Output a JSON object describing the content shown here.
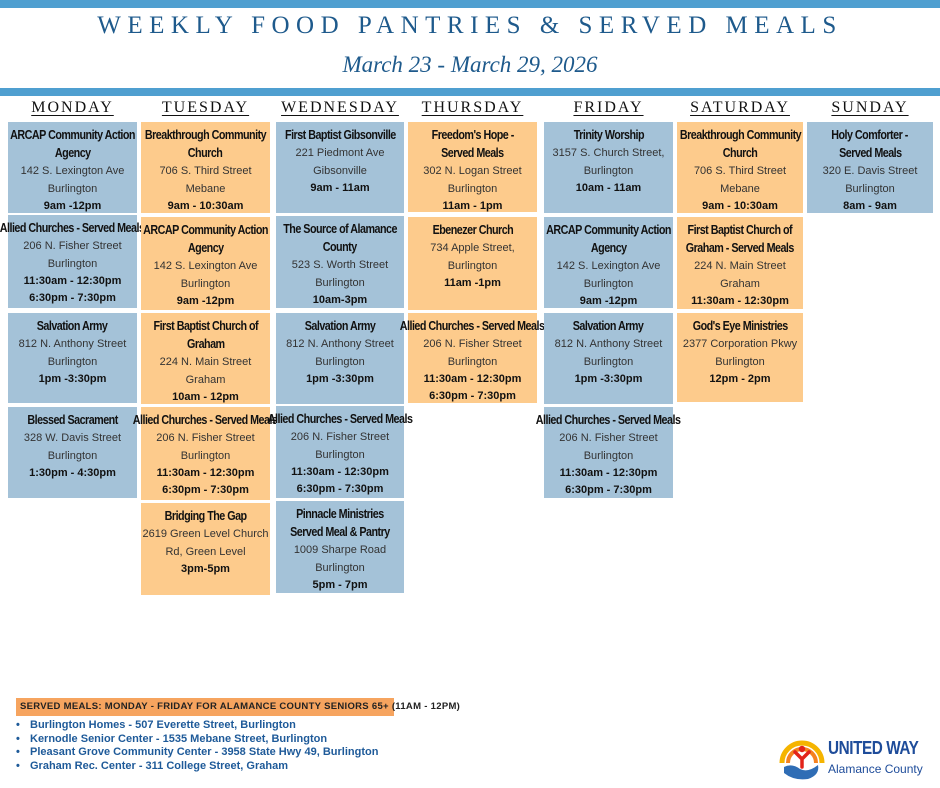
{
  "header": {
    "title": "WEEKLY FOOD PANTRIES & SERVED MEALS",
    "date_range": "March 23 - March 29, 2026"
  },
  "colors": {
    "accent_bar": "#4f9fd0",
    "title_text": "#1e5a8c",
    "box_blue": "#a4c2d8",
    "box_orange": "#fdcb8c",
    "served_banner": "#f6a45f",
    "served_list_text": "#1e5a99"
  },
  "days": [
    {
      "label": "MONDAY",
      "entries": [
        {
          "name": "ARCAP Community Action Agency",
          "lines": [
            "142 S. Lexington Ave",
            "Burlington"
          ],
          "times": [
            "9am -12pm"
          ],
          "color": "blue"
        },
        {
          "name": "Allied Churches - Served Meals",
          "lines": [
            "206 N. Fisher Street",
            "Burlington"
          ],
          "times": [
            "11:30am - 12:30pm",
            "6:30pm - 7:30pm"
          ],
          "color": "blue"
        },
        {
          "name": "Salvation Army",
          "lines": [
            "812 N. Anthony Street",
            "Burlington"
          ],
          "times": [
            "1pm -3:30pm"
          ],
          "color": "blue"
        },
        {
          "name": "Blessed Sacrament",
          "lines": [
            "328 W. Davis Street",
            "Burlington"
          ],
          "times": [
            "1:30pm - 4:30pm"
          ],
          "color": "blue"
        }
      ]
    },
    {
      "label": "TUESDAY",
      "entries": [
        {
          "name": "Breakthrough Community Church",
          "lines": [
            "706 S. Third Street",
            "Mebane"
          ],
          "times": [
            "9am - 10:30am"
          ],
          "color": "orange"
        },
        {
          "name": "ARCAP Community Action Agency",
          "lines": [
            "142 S. Lexington Ave",
            "Burlington"
          ],
          "times": [
            "9am -12pm"
          ],
          "color": "orange"
        },
        {
          "name": "First Baptist Church of Graham",
          "lines": [
            "224 N. Main Street",
            "Graham"
          ],
          "times": [
            "10am - 12pm"
          ],
          "color": "orange"
        },
        {
          "name": "Allied Churches - Served Meals",
          "lines": [
            "206 N. Fisher Street",
            "Burlington"
          ],
          "times": [
            "11:30am - 12:30pm",
            "6:30pm - 7:30pm"
          ],
          "color": "orange"
        },
        {
          "name": "Bridging The Gap",
          "lines": [
            "2619 Green Level Church",
            "Rd, Green Level"
          ],
          "times": [
            "3pm-5pm"
          ],
          "color": "orange"
        }
      ]
    },
    {
      "label": "WEDNESDAY",
      "entries": [
        {
          "name": "First Baptist Gibsonville",
          "lines": [
            "221 Piedmont Ave",
            "Gibsonville"
          ],
          "times": [
            "9am - 11am"
          ],
          "color": "blue"
        },
        {
          "name": "The Source of Alamance County",
          "lines": [
            "523 S. Worth Street",
            "Burlington"
          ],
          "times": [
            "10am-3pm"
          ],
          "color": "blue"
        },
        {
          "name": "Salvation Army",
          "lines": [
            "812 N. Anthony Street",
            "Burlington"
          ],
          "times": [
            "1pm -3:30pm"
          ],
          "color": "blue"
        },
        {
          "name": "Allied Churches - Served Meals",
          "lines": [
            "206 N. Fisher Street",
            "Burlington"
          ],
          "times": [
            "11:30am - 12:30pm",
            "6:30pm - 7:30pm"
          ],
          "color": "blue"
        },
        {
          "name": "Pinnacle Ministries Served Meal & Pantry",
          "lines": [
            "1009 Sharpe Road",
            "Burlington"
          ],
          "times": [
            "5pm - 7pm"
          ],
          "color": "blue"
        }
      ]
    },
    {
      "label": "THURSDAY",
      "entries": [
        {
          "name": "Freedom's Hope - Served Meals",
          "lines": [
            "302 N. Logan Street",
            "Burlington"
          ],
          "times": [
            "11am - 1pm"
          ],
          "color": "orange"
        },
        {
          "name": "Ebenezer Church",
          "lines": [
            "734 Apple Street,",
            "Burlington"
          ],
          "times": [
            "11am -1pm"
          ],
          "color": "orange"
        },
        {
          "name": "Allied Churches - Served Meals",
          "lines": [
            "206 N. Fisher Street",
            "Burlington"
          ],
          "times": [
            "11:30am - 12:30pm",
            "6:30pm - 7:30pm"
          ],
          "color": "orange"
        }
      ]
    },
    {
      "label": "FRIDAY",
      "entries": [
        {
          "name": "Trinity Worship",
          "lines": [
            "3157 S. Church Street,",
            "Burlington"
          ],
          "times": [
            "10am - 11am"
          ],
          "color": "blue"
        },
        {
          "name": "ARCAP Community Action Agency",
          "lines": [
            "142 S. Lexington Ave",
            "Burlington"
          ],
          "times": [
            "9am -12pm"
          ],
          "color": "blue"
        },
        {
          "name": "Salvation Army",
          "lines": [
            "812 N. Anthony Street",
            "Burlington"
          ],
          "times": [
            "1pm -3:30pm"
          ],
          "color": "blue"
        },
        {
          "name": "Allied Churches - Served Meals",
          "lines": [
            "206 N. Fisher Street",
            "Burlington"
          ],
          "times": [
            "11:30am - 12:30pm",
            "6:30pm - 7:30pm"
          ],
          "color": "blue"
        }
      ]
    },
    {
      "label": "SATURDAY",
      "entries": [
        {
          "name": "Breakthrough Community Church",
          "lines": [
            "706 S. Third Street",
            "Mebane"
          ],
          "times": [
            "9am - 10:30am"
          ],
          "color": "orange"
        },
        {
          "name": "First Baptist Church of Graham - Served Meals",
          "lines": [
            "224 N. Main Street",
            "Graham"
          ],
          "times": [
            "11:30am - 12:30pm"
          ],
          "color": "orange"
        },
        {
          "name": "God's Eye Ministries",
          "lines": [
            "2377 Corporation Pkwy",
            "Burlington"
          ],
          "times": [
            "12pm - 2pm"
          ],
          "color": "orange"
        }
      ]
    },
    {
      "label": "SUNDAY",
      "entries": [
        {
          "name": "Holy Comforter - Served Meals",
          "lines": [
            "320 E. Davis Street",
            "Burlington"
          ],
          "times": [
            "8am - 9am"
          ],
          "color": "blue"
        }
      ]
    }
  ],
  "served_meals": {
    "banner": "SERVED MEALS:  MONDAY - FRIDAY FOR ALAMANCE COUNTY SENIORS 65+ (11AM - 12PM)",
    "locations": [
      "Burlington Homes - 507 Everette Street, Burlington",
      "Kernodle Senior Center - 1535 Mebane Street, Burlington",
      "Pleasant Grove Community Center - 3958 State Hwy 49, Burlington",
      "Graham Rec. Center - 311 College Street, Graham"
    ]
  },
  "logo": {
    "name": "UNITED WAY",
    "subname": "Alamance County"
  }
}
